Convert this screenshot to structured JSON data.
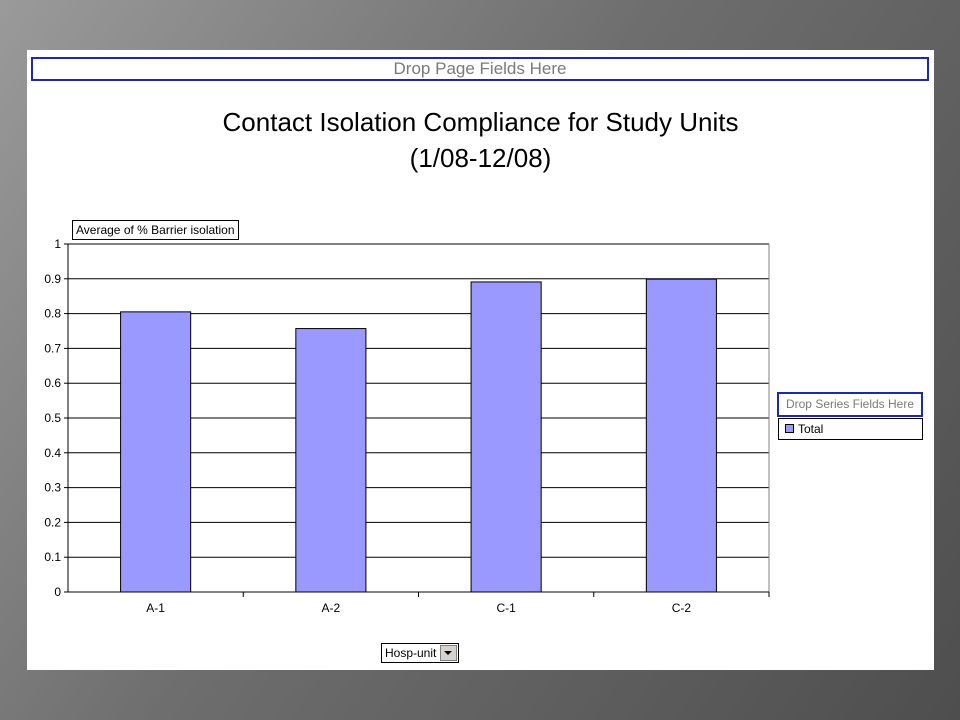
{
  "pivot": {
    "drop_page_fields": "Drop Page Fields Here",
    "data_field": "Average of % Barrier isolation",
    "drop_series_fields": "Drop Series Fields Here",
    "legend_total": "Total",
    "category_field": "Hosp-unit"
  },
  "colors": {
    "bar_fill": "#9999ff",
    "drop_zone_border": "#1c2aa5"
  },
  "chart_data": {
    "type": "bar",
    "title": "Contact Isolation Compliance for Study Units",
    "subtitle": "(1/08-12/08)",
    "categories": [
      "A-1",
      "A-2",
      "C-1",
      "C-2"
    ],
    "series": [
      {
        "name": "Total",
        "values": [
          0.805,
          0.757,
          0.891,
          0.899
        ]
      }
    ],
    "ylim": [
      0,
      1
    ],
    "yticks": [
      "0",
      "0.1",
      "0.2",
      "0.3",
      "0.4",
      "0.5",
      "0.6",
      "0.7",
      "0.8",
      "0.9",
      "1"
    ],
    "grid": true,
    "legend_position": "right"
  }
}
